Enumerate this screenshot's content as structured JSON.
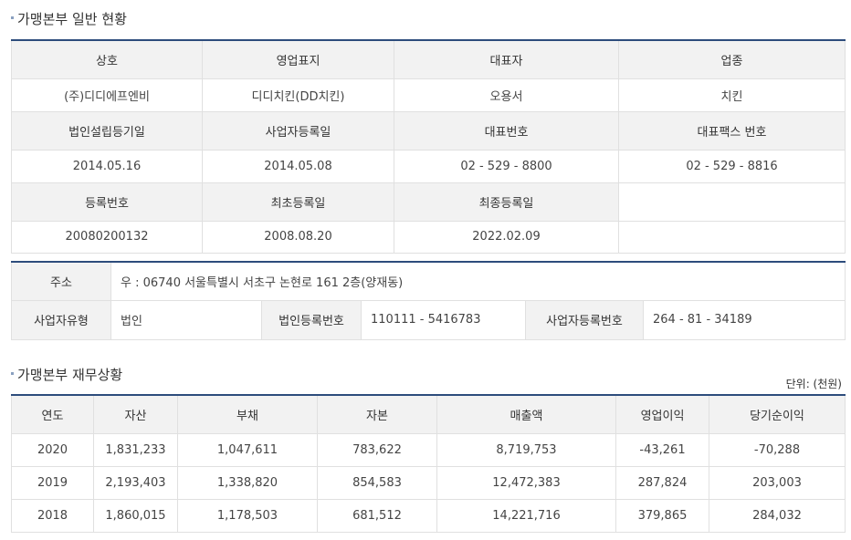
{
  "general": {
    "title": "가맹본부 일반 현황",
    "h1": [
      "상호",
      "영업표지",
      "대표자",
      "업종"
    ],
    "v1": [
      "(주)디디에프엔비",
      "디디치킨(DD치킨)",
      "오용서",
      "치킨"
    ],
    "h2": [
      "법인설립등기일",
      "사업자등록일",
      "대표번호",
      "대표팩스 번호"
    ],
    "v2": [
      "2014.05.16",
      "2014.05.08",
      "02  -  529  -  8800",
      "02  -  529  -  8816"
    ],
    "h3": [
      "등록번호",
      "최초등록일",
      "최종등록일",
      ""
    ],
    "v3": [
      "20080200132",
      "2008.08.20",
      "2022.02.09",
      ""
    ]
  },
  "address": {
    "addr_label": "주소",
    "addr_value": "우 : 06740 서울특별시 서초구 논현로 161 2층(양재동)",
    "type_label": "사업자유형",
    "type_value": "법인",
    "corp_label": "법인등록번호",
    "corp_value": "110111  -  5416783",
    "biz_label": "사업자등록번호",
    "biz_value": "264  -  81  -  34189"
  },
  "finance": {
    "title": "가맹본부 재무상황",
    "unit": "단위: (천원)",
    "headers": [
      "연도",
      "자산",
      "부채",
      "자본",
      "매출액",
      "영업이익",
      "당기순이익"
    ],
    "rows": [
      [
        "2020",
        "1,831,233",
        "1,047,611",
        "783,622",
        "8,719,753",
        "-43,261",
        "-70,288"
      ],
      [
        "2019",
        "2,193,403",
        "1,338,820",
        "854,583",
        "12,472,383",
        "287,824",
        "203,003"
      ],
      [
        "2018",
        "1,860,015",
        "1,178,503",
        "681,512",
        "14,221,716",
        "379,865",
        "284,032"
      ]
    ]
  }
}
